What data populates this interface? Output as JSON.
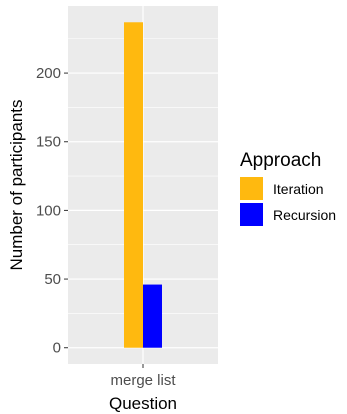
{
  "chart_data": {
    "type": "bar",
    "categories": [
      "merge list"
    ],
    "series": [
      {
        "name": "Iteration",
        "values": [
          237
        ],
        "color": "#FFB90F"
      },
      {
        "name": "Recursion",
        "values": [
          46
        ],
        "color": "#0000FF"
      }
    ],
    "xlabel": "Question",
    "ylabel": "Number of participants",
    "yticks": [
      0,
      50,
      100,
      150,
      200
    ],
    "ylim": [
      -11.85,
      248.85
    ],
    "legend_title": "Approach",
    "legend_position": "right",
    "grid": true,
    "panel_background": "#EBEBEB"
  }
}
